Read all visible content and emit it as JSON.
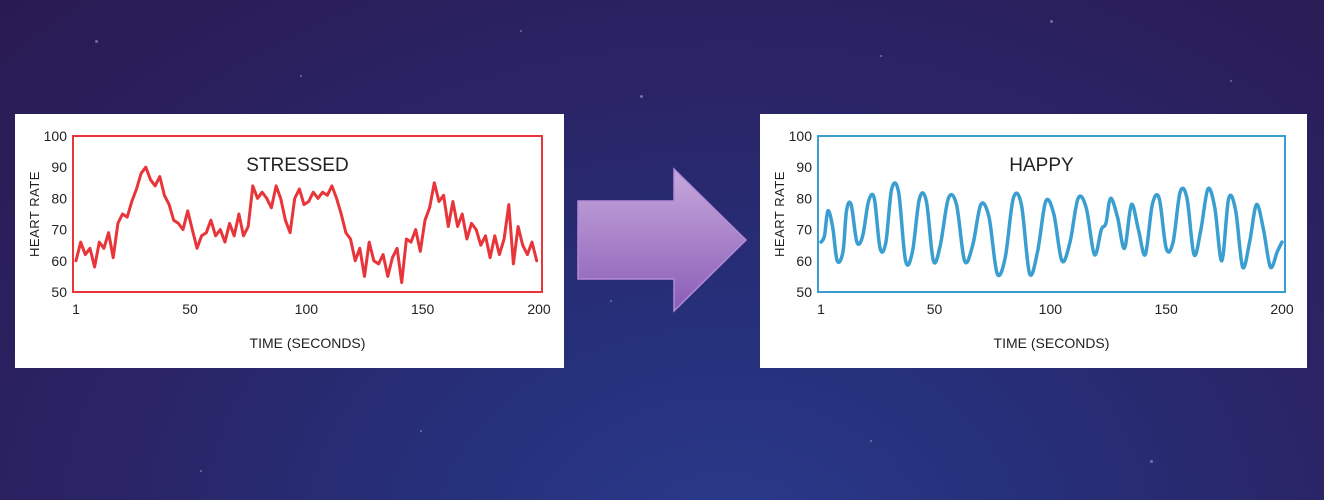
{
  "colors": {
    "stressed": "#e8353a",
    "happy": "#3a9fd0",
    "arrow_top": "#c6a8dc",
    "arrow_bottom": "#8a5db6"
  },
  "arrow_icon": "right-arrow-icon",
  "chart_data": [
    {
      "type": "line",
      "title": "STRESSED",
      "xlabel": "TIME (SECONDS)",
      "ylabel": "HEART RATE",
      "xlim": [
        1,
        200
      ],
      "ylim": [
        50,
        100
      ],
      "xticks": [
        1,
        50,
        100,
        150,
        200
      ],
      "yticks": [
        50,
        60,
        70,
        80,
        90,
        100
      ],
      "grid": false,
      "color": "#e8353a",
      "x": [
        1,
        3,
        5,
        7,
        9,
        11,
        13,
        15,
        17,
        19,
        21,
        23,
        25,
        27,
        29,
        31,
        33,
        35,
        37,
        39,
        41,
        43,
        45,
        47,
        49,
        51,
        53,
        55,
        57,
        59,
        61,
        63,
        65,
        67,
        69,
        71,
        73,
        75,
        77,
        79,
        81,
        83,
        85,
        87,
        89,
        91,
        93,
        95,
        97,
        99,
        101,
        103,
        105,
        107,
        109,
        111,
        113,
        115,
        117,
        119,
        121,
        123,
        125,
        127,
        129,
        131,
        133,
        135,
        137,
        139,
        141,
        143,
        145,
        147,
        149,
        151,
        153,
        155,
        157,
        159,
        161,
        163,
        165,
        167,
        169,
        171,
        173,
        175,
        177,
        179,
        181,
        183,
        185,
        187,
        189,
        191,
        193,
        195,
        197,
        199
      ],
      "values": [
        60,
        66,
        62,
        64,
        58,
        66,
        64,
        69,
        61,
        72,
        75,
        74,
        79,
        83,
        88,
        90,
        86,
        84,
        87,
        81,
        78,
        73,
        72,
        70,
        76,
        70,
        64,
        68,
        69,
        73,
        68,
        70,
        66,
        72,
        68,
        75,
        68,
        71,
        84,
        80,
        82,
        80,
        77,
        84,
        80,
        73,
        69,
        80,
        83,
        78,
        79,
        82,
        80,
        82,
        81,
        84,
        80,
        75,
        69,
        67,
        60,
        64,
        55,
        66,
        60,
        59,
        62,
        55,
        61,
        64,
        53,
        67,
        66,
        70,
        63,
        73,
        77,
        85,
        79,
        81,
        71,
        79,
        71,
        75,
        67,
        72,
        70,
        65,
        68,
        61,
        68,
        62,
        67,
        78,
        59,
        71,
        65,
        62,
        66,
        60
      ]
    },
    {
      "type": "line",
      "title": "HAPPY",
      "xlabel": "TIME (SECONDS)",
      "ylabel": "HEART RATE",
      "xlim": [
        1,
        200
      ],
      "ylim": [
        50,
        100
      ],
      "xticks": [
        1,
        50,
        100,
        150,
        200
      ],
      "yticks": [
        50,
        60,
        70,
        80,
        90,
        100
      ],
      "grid": false,
      "color": "#3a9fd0",
      "x": [
        1,
        2.5,
        4,
        6,
        8,
        10.5,
        12,
        14,
        16.5,
        19,
        21.5,
        24,
        26.5,
        29,
        31.5,
        34.5,
        37.5,
        40.5,
        43.5,
        46.5,
        49.5,
        52.5,
        56,
        59.5,
        63,
        66.5,
        70,
        73.5,
        77,
        80.5,
        84,
        87.5,
        91,
        94.5,
        98,
        101.5,
        105,
        108.5,
        112,
        115.5,
        119,
        122,
        124,
        126,
        129,
        132,
        135,
        138,
        141,
        144,
        147,
        150,
        153,
        156,
        159,
        162,
        165,
        168,
        171,
        174,
        177,
        180,
        183,
        186,
        189,
        192,
        195,
        198,
        200
      ],
      "values": [
        66,
        68,
        76,
        71,
        60,
        63,
        76,
        78,
        66,
        68,
        79,
        80,
        64,
        66,
        83,
        82,
        60,
        63,
        80,
        79,
        60,
        65,
        80,
        78,
        60,
        65,
        78,
        74,
        56,
        61,
        80,
        78,
        56,
        63,
        79,
        75,
        60,
        66,
        80,
        77,
        62,
        70,
        72,
        80,
        74,
        64,
        78,
        70,
        62,
        78,
        80,
        64,
        66,
        82,
        80,
        62,
        70,
        83,
        77,
        60,
        80,
        76,
        58,
        66,
        78,
        70,
        58,
        63,
        66
      ]
    }
  ]
}
